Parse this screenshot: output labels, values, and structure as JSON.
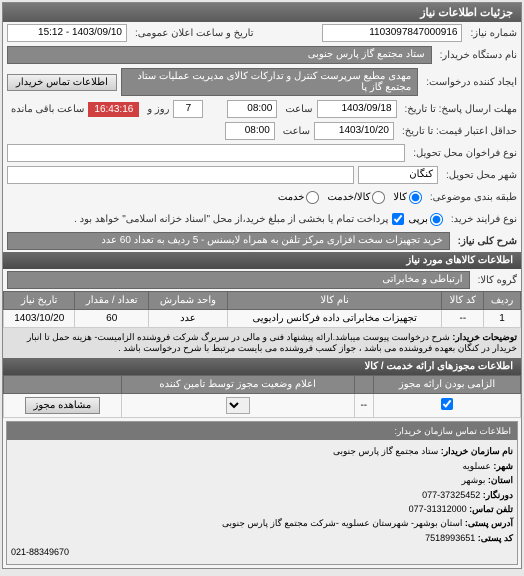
{
  "panel_title": "جزئیات اطلاعات نیاز",
  "fields": {
    "need_no_label": "شماره نیاز:",
    "need_no": "1103097847000916",
    "announce_label": "تاریخ و ساعت اعلان عمومی:",
    "announce_value": "1403/09/10 - 15:12",
    "org_label": "نام دستگاه خریدار:",
    "org_value": "ستاد مجتمع گاز پارس جنوبی",
    "creator_label": "ایجاد کننده درخواست:",
    "creator_value": "مهدی مطیع سرپرست کنترل و تدارکات کالای مدیریت عملیات ستاد مجتمع گاز پا",
    "contact_btn": "اطلاعات تماس خریدار",
    "deadline_send_label": "مهلت ارسال پاسخ: تا تاریخ:",
    "deadline_send_date": "1403/09/18",
    "hour_label": "ساعت",
    "deadline_send_hour": "08:00",
    "days_label": "روز و",
    "days_value": "7",
    "remain_label": "ساعت باقی مانده",
    "timer": "16:43:16",
    "price_valid_label": "حداقل اعتبار قیمت: تا تاریخ:",
    "price_valid_date": "1403/10/20",
    "price_valid_hour": "08:00",
    "deliver_type_label": "نوع فراخوان محل تحویل:",
    "deliver_city_label": "شهر محل تحویل:",
    "deliver_city": "کنگان",
    "group_type_label": "طبقه بندی موضوعی:",
    "radios": {
      "goods": "کالا",
      "in_between": "کالا/خدمت",
      "service": "خدمت"
    },
    "pay_type_label": "نوع فرایند خرید:",
    "pay_radios": {
      "cash": "برپی"
    },
    "pay_note": "پرداخت تمام یا بخشی از مبلغ خرید،از محل \"اسناد خزانه اسلامی\" خواهد بود .",
    "need_title_label": "شرح کلی نیاز:",
    "need_title": "خرید تجهیزات سخت افزاری مرکز تلفن به همراه لایسنس - 5 ردیف به تعداد 60 عدد"
  },
  "goods_section": "اطلاعات کالاهای مورد نیاز",
  "goods_group_label": "گروه کالا:",
  "goods_group_value": "ارتباطی و مخابراتی",
  "table": {
    "headers": [
      "ردیف",
      "کد کالا",
      "نام کالا",
      "واحد شمارش",
      "تعداد / مقدار",
      "تاریخ نیاز"
    ],
    "rows": [
      [
        "1",
        "--",
        "تجهیزات مخابراتی داده فرکانس رادیویی",
        "عدد",
        "60",
        "1403/10/20"
      ]
    ]
  },
  "buyer_desc_label": "توضیحات خریدار:",
  "buyer_desc": "شرح درخواست پیوست میباشد.ارائه پیشنهاد فنی و مالی در سربرگ شرکت فروشنده الزامیست- هزینه حمل تا انبار خریدار در کنگان بعهده فروشنده می باشد ، جواز کسب فروشنده می بایست مرتبط با شرح درخواست باشد .",
  "license_section": "اطلاعات مجوزهای ارائه خدمت / کالا",
  "license_headers": [
    "الزامی بودن ارائه مجوز",
    "",
    "اعلام وضعیت مجوز توسط تامین کننده",
    ""
  ],
  "license_row": {
    "dash": "--",
    "view": "مشاهده مجوز"
  },
  "contact_section": "اطلاعات تماس سازمان خریدار:",
  "contact": {
    "org_label": "نام سازمان خریدار:",
    "org": "ستاد مجتمع گاز پارس جنوبی",
    "city_label": "شهر:",
    "city": "عسلویه",
    "province_label": "استان:",
    "province": "بوشهر",
    "fax_label": "دورنگار:",
    "fax": "37325452-077",
    "phone_label": "تلفن تماس:",
    "phone": "31312000-077",
    "addr_label": "آدرس پستی:",
    "addr": "استان بوشهر- شهرستان عسلویه -شرکت مجتمع گاز پارس جنوبی",
    "post_label": "کد پستی:",
    "post": "7518993651"
  },
  "support_phone": "021-88349670"
}
